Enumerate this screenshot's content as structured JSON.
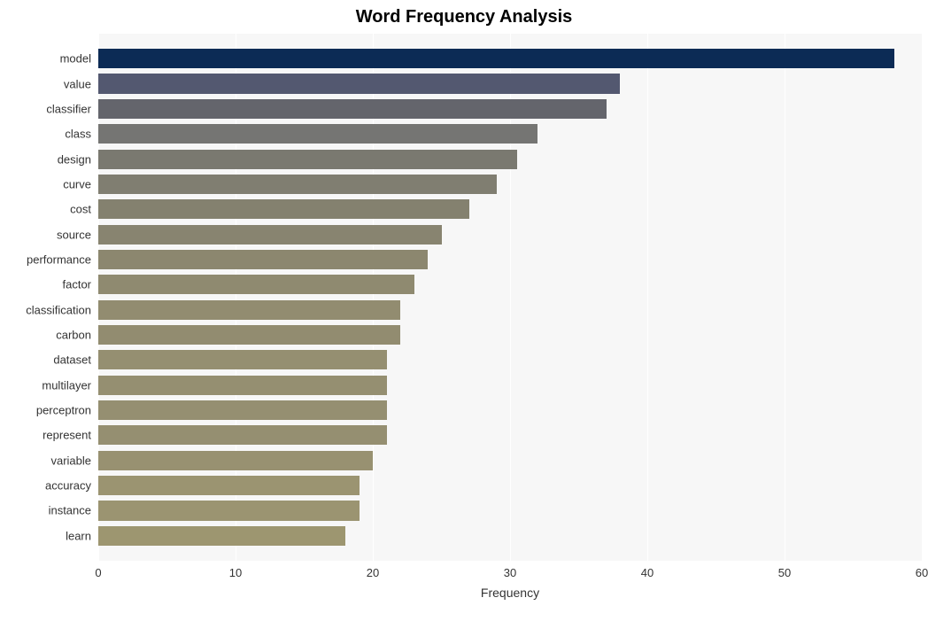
{
  "chart": {
    "type": "bar-horizontal",
    "title": "Word Frequency Analysis",
    "title_fontsize": 20,
    "title_fontweight": 700,
    "xlabel": "Frequency",
    "label_fontsize": 14,
    "tick_fontsize": 13,
    "background_color": "#ffffff",
    "plot_background_color": "#f7f7f7",
    "grid_color": "#ffffff",
    "xlim": [
      0,
      60
    ],
    "xtick_step": 10,
    "xticks": [
      0,
      10,
      20,
      30,
      40,
      50,
      60
    ],
    "bar_height_ratio": 0.78,
    "categories": [
      "model",
      "value",
      "classifier",
      "class",
      "design",
      "curve",
      "cost",
      "source",
      "performance",
      "factor",
      "classification",
      "carbon",
      "dataset",
      "multilayer",
      "perceptron",
      "represent",
      "variable",
      "accuracy",
      "instance",
      "learn"
    ],
    "values": [
      58,
      38,
      37,
      32,
      30.5,
      29,
      27,
      25,
      24,
      23,
      22,
      22,
      21,
      21,
      21,
      21,
      20,
      19,
      19,
      18
    ],
    "bar_colors": [
      "#0c2b55",
      "#535870",
      "#64656c",
      "#757573",
      "#7a7970",
      "#807e71",
      "#84816f",
      "#888470",
      "#8c876f",
      "#8f8a70",
      "#928c70",
      "#928c70",
      "#958f71",
      "#958f71",
      "#958f71",
      "#958f71",
      "#989171",
      "#9b9471",
      "#9b9471",
      "#9d9670"
    ]
  }
}
